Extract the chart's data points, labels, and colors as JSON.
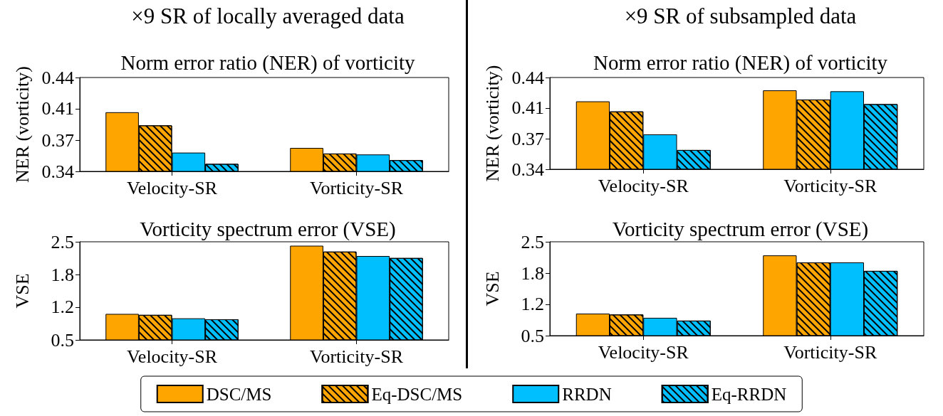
{
  "chart_data": [
    {
      "type": "bar",
      "title": "Norm error ratio (NER) of vorticity",
      "annotations": [
        "×9 SR of locally averaged data"
      ],
      "ylabel": "NER (vorticity)",
      "categories": [
        "Velocity-SR",
        "Vorticity-SR"
      ],
      "ylim": [
        0.34,
        0.44
      ],
      "yticks": [
        0.34,
        {
          "value": 0.3733,
          "label": "0.37"
        },
        {
          "value": 0.4067,
          "label": "0.41"
        },
        0.44
      ],
      "grid": false,
      "legend": false,
      "series": [
        {
          "color": "#ffa500",
          "values": [
            0.403,
            0.365
          ]
        },
        {
          "color": "#ffa500",
          "values": [
            0.389,
            0.359
          ]
        },
        {
          "color": "#00bfff",
          "values": [
            0.36,
            0.358
          ]
        },
        {
          "color": "#00bfff",
          "values": [
            0.348,
            0.352
          ]
        }
      ]
    },
    {
      "type": "bar",
      "title": "Norm error ratio (NER) of vorticity",
      "annotations": [
        "×9 SR of subsampled data"
      ],
      "ylabel": "NER (vorticity)",
      "categories": [
        "Velocity-SR",
        "Vorticity-SR"
      ],
      "ylim": [
        0.34,
        0.44
      ],
      "yticks": [
        0.34,
        {
          "value": 0.3733,
          "label": "0.37"
        },
        {
          "value": 0.4067,
          "label": "0.41"
        },
        0.44
      ],
      "grid": false,
      "legend": false,
      "series": [
        {
          "color": "#ffa500",
          "values": [
            0.414,
            0.426
          ]
        },
        {
          "color": "#ffa500",
          "values": [
            0.403,
            0.416
          ]
        },
        {
          "color": "#00bfff",
          "values": [
            0.378,
            0.425
          ]
        },
        {
          "color": "#00bfff",
          "values": [
            0.361,
            0.411
          ]
        }
      ]
    },
    {
      "type": "bar",
      "title": "Vorticity spectrum error (VSE)",
      "ylabel": "VSE",
      "categories": [
        "Velocity-SR",
        "Vorticity-SR"
      ],
      "ylim": [
        0.5,
        2.5
      ],
      "yticks": [
        0.5,
        {
          "value": 1.1667,
          "label": "1.2"
        },
        {
          "value": 1.8333,
          "label": "1.8"
        },
        2.5
      ],
      "grid": false,
      "legend": "bottom",
      "series": [
        {
          "name": "DSC/MS",
          "color": "#ffa500",
          "values": [
            1.03,
            2.42
          ]
        },
        {
          "name": "Eq-DSC/MS",
          "color": "#ffa500",
          "values": [
            1.01,
            2.3
          ]
        },
        {
          "name": "RRDN",
          "color": "#00bfff",
          "values": [
            0.94,
            2.21
          ]
        },
        {
          "name": "Eq-RRDN",
          "color": "#00bfff",
          "values": [
            0.92,
            2.17
          ]
        }
      ]
    },
    {
      "type": "bar",
      "title": "Vorticity spectrum error (VSE)",
      "ylabel": "VSE",
      "categories": [
        "Velocity-SR",
        "Vorticity-SR"
      ],
      "ylim": [
        0.5,
        2.5
      ],
      "yticks": [
        0.5,
        {
          "value": 1.1667,
          "label": "1.2"
        },
        {
          "value": 1.8333,
          "label": "1.8"
        },
        2.5
      ],
      "grid": false,
      "legend": false,
      "series": [
        {
          "color": "#ffa500",
          "values": [
            0.97,
            2.21
          ]
        },
        {
          "color": "#ffa500",
          "values": [
            0.95,
            2.06
          ]
        },
        {
          "color": "#00bfff",
          "values": [
            0.88,
            2.06
          ]
        },
        {
          "color": "#00bfff",
          "values": [
            0.82,
            1.88
          ]
        }
      ]
    }
  ]
}
